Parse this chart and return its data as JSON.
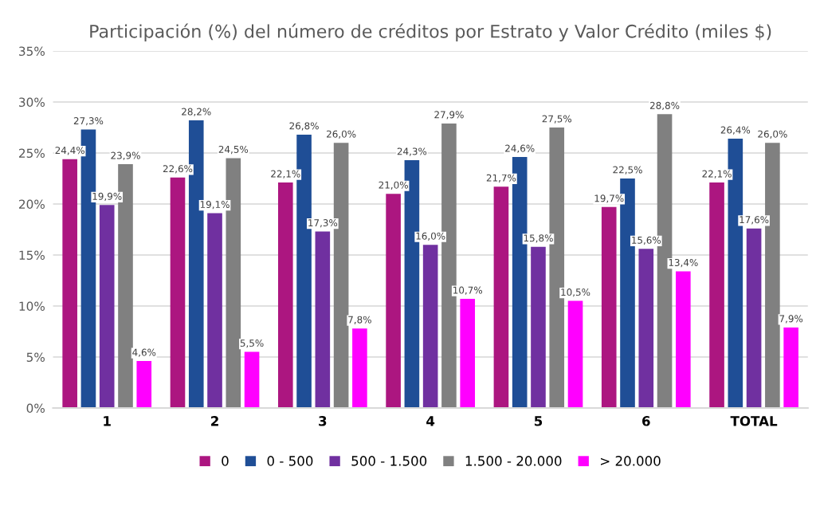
{
  "chart_data": {
    "type": "bar",
    "title": "Participación (%) del número de créditos por Estrato y Valor Crédito (miles $)",
    "categories": [
      "1",
      "2",
      "3",
      "4",
      "5",
      "6",
      "TOTAL"
    ],
    "series": [
      {
        "name": "0",
        "color": "#ac1680",
        "values": [
          24.4,
          22.6,
          22.1,
          21.0,
          21.7,
          19.7,
          22.1
        ],
        "value_labels": [
          "24,4%",
          "22,6%",
          "22,1%",
          "21,0%",
          "21,7%",
          "19,7%",
          "22,1%"
        ]
      },
      {
        "name": "0 - 500",
        "color": "#1f4e96",
        "values": [
          27.3,
          28.2,
          26.8,
          24.3,
          24.6,
          22.5,
          26.4
        ],
        "value_labels": [
          "27,3%",
          "28,2%",
          "26,8%",
          "24,3%",
          "24,6%",
          "22,5%",
          "26,4%"
        ]
      },
      {
        "name": "500 - 1.500",
        "color": "#7030a0",
        "values": [
          19.9,
          19.1,
          17.3,
          16.0,
          15.8,
          15.6,
          17.6
        ],
        "value_labels": [
          "19,9%",
          "19,1%",
          "17,3%",
          "16,0%",
          "15,8%",
          "15,6%",
          "17,6%"
        ]
      },
      {
        "name": "1.500 - 20.000",
        "color": "#808080",
        "values": [
          23.9,
          24.5,
          26.0,
          27.9,
          27.5,
          28.8,
          26.0
        ],
        "value_labels": [
          "23,9%",
          "24,5%",
          "26,0%",
          "27,9%",
          "27,5%",
          "28,8%",
          "26,0%"
        ]
      },
      {
        "name": "> 20.000",
        "color": "#ff00ff",
        "values": [
          4.6,
          5.5,
          7.8,
          10.7,
          10.5,
          13.4,
          7.9
        ],
        "value_labels": [
          "4,6%",
          "5,5%",
          "7,8%",
          "10,7%",
          "10,5%",
          "13,4%",
          "7,9%"
        ]
      }
    ],
    "ylim": [
      0,
      35
    ],
    "yticks": [
      {
        "value": 0,
        "label": "0%"
      },
      {
        "value": 5,
        "label": "5%"
      },
      {
        "value": 10,
        "label": "10%"
      },
      {
        "value": 15,
        "label": "15%"
      },
      {
        "value": 20,
        "label": "20%"
      },
      {
        "value": 25,
        "label": "25%"
      },
      {
        "value": 30,
        "label": "30%"
      },
      {
        "value": 35,
        "label": "35%"
      }
    ],
    "grid": "y",
    "legend": "bottom"
  }
}
